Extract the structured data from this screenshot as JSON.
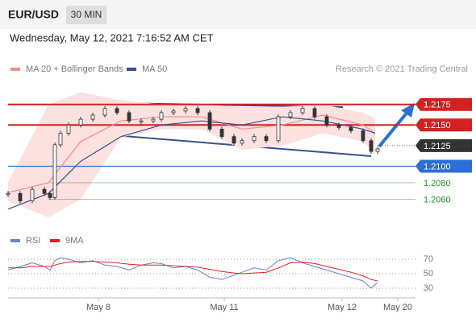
{
  "header": {
    "symbol": "EUR/USD",
    "interval": "30 MIN",
    "timestamp": "Wednesday, May 12, 2021 7:16:52 AM CET",
    "credit": "Research © 2021 Trading Central"
  },
  "chart_data": {
    "type": "candlestick",
    "xlim": [
      0,
      505
    ],
    "ylim": [
      1.2038,
      1.2204
    ],
    "xticks": [
      {
        "value": 112,
        "label": "May 8"
      },
      {
        "value": 268,
        "label": "May 11"
      },
      {
        "value": 414,
        "label": "May 12"
      },
      {
        "value": 483,
        "label": "May 20"
      }
    ],
    "price": {
      "x": [
        0,
        15,
        30,
        45,
        52,
        58,
        65,
        75,
        90,
        105,
        120,
        135,
        150,
        165,
        180,
        190,
        205,
        220,
        235,
        250,
        265,
        280,
        290,
        305,
        320,
        335,
        350,
        365,
        380,
        395,
        410,
        425,
        440,
        450,
        458
      ],
      "values": [
        1.2067,
        1.2058,
        1.2072,
        1.2067,
        1.2062,
        1.2126,
        1.214,
        1.215,
        1.2157,
        1.2162,
        1.217,
        1.2165,
        1.2155,
        1.2155,
        1.2157,
        1.2165,
        1.2167,
        1.217,
        1.2165,
        1.2145,
        1.2136,
        1.2128,
        1.2131,
        1.2136,
        1.2131,
        1.216,
        1.2165,
        1.217,
        1.216,
        1.215,
        1.2147,
        1.2143,
        1.2131,
        1.2118,
        1.2121
      ],
      "color": "#333333"
    },
    "series_x": [
      0,
      50,
      90,
      140,
      190,
      240,
      290,
      340,
      390,
      440,
      455
    ],
    "series": [
      {
        "name": "MA 20 + Bollinger Bands",
        "color": "#f08c8c",
        "band_color": "#fde0e0",
        "values": [
          1.2068,
          1.208,
          1.213,
          1.2155,
          1.216,
          1.216,
          1.2145,
          1.215,
          1.2162,
          1.215,
          1.214
        ],
        "upper": [
          1.208,
          1.2175,
          1.219,
          1.218,
          1.2175,
          1.2175,
          1.2172,
          1.2172,
          1.2175,
          1.2165,
          1.2158
        ],
        "lower": [
          1.2058,
          1.2038,
          1.206,
          1.2135,
          1.2145,
          1.2145,
          1.212,
          1.2125,
          1.214,
          1.213,
          1.2115
        ]
      },
      {
        "name": "MA 50",
        "color": "#3b4f8c",
        "values": [
          1.2048,
          1.2067,
          1.2106,
          1.2136,
          1.215,
          1.2155,
          1.215,
          1.216,
          1.2155,
          1.2145,
          1.214
        ]
      }
    ],
    "levels": [
      {
        "value": 1.2175,
        "color": "#d42020",
        "style": "tag"
      },
      {
        "value": 1.215,
        "label": "1.2150",
        "color": "#d42020",
        "style": "tag"
      },
      {
        "value": 1.2125,
        "color": "#333333",
        "style": "tag"
      },
      {
        "value": 1.21,
        "label": "1.2100",
        "color": "#2a6fd6",
        "style": "tag"
      },
      {
        "value": 1.208,
        "label": "1.2080",
        "color": "#2e8b2e",
        "style": "text"
      },
      {
        "value": 1.206,
        "label": "1.2060",
        "color": "#2e8b2e",
        "style": "text"
      }
    ],
    "rsi": {
      "ylim": [
        15,
        90
      ],
      "yticks": [
        70,
        50,
        30
      ],
      "series": [
        {
          "name": "RSI",
          "color": "#6a7fd6",
          "values": [
            55,
            60,
            65,
            60,
            55,
            68,
            72,
            70,
            65,
            68,
            62,
            60,
            55,
            62,
            65,
            64,
            58,
            60,
            55,
            45,
            42,
            48,
            52,
            58,
            55,
            68,
            72,
            65,
            60,
            55,
            50,
            45,
            40,
            30,
            38
          ]
        },
        {
          "name": "9MA",
          "color": "#e02020",
          "values": [
            58,
            58,
            60,
            60,
            60,
            62,
            64,
            66,
            67,
            67,
            66,
            65,
            63,
            62,
            62,
            62,
            61,
            60,
            59,
            56,
            53,
            51,
            50,
            51,
            52,
            58,
            65,
            66,
            64,
            60,
            56,
            52,
            47,
            42,
            40
          ]
        }
      ]
    }
  }
}
